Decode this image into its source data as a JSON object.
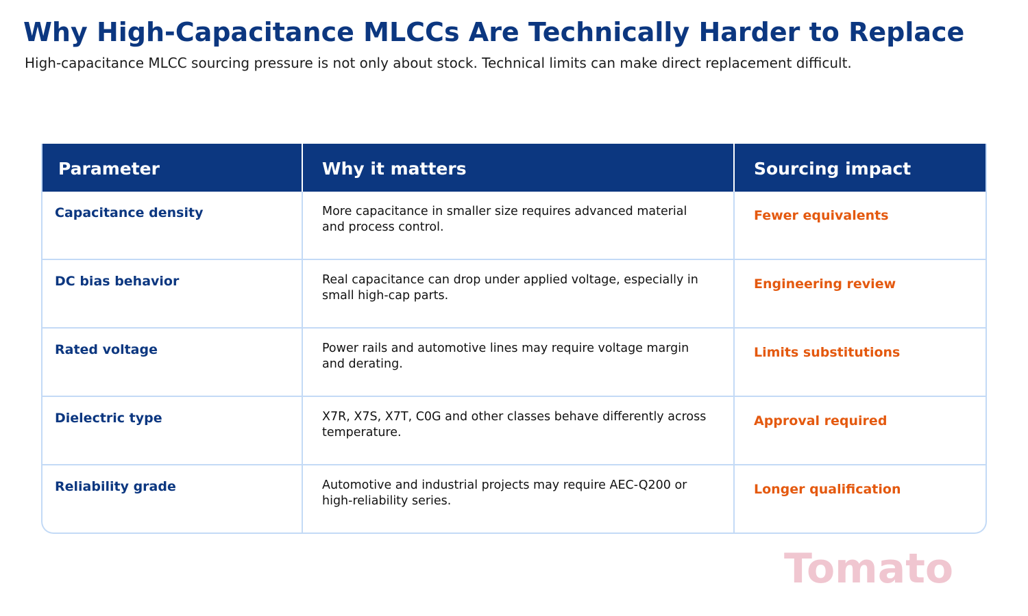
{
  "header": {
    "title": "Why High-Capacitance MLCCs Are Technically Harder to Replace",
    "subtitle": "High-capacitance MLCC sourcing pressure is not only about stock. Technical limits can make direct replacement difficult."
  },
  "table": {
    "columns": [
      "Parameter",
      "Why it matters",
      "Sourcing impact"
    ],
    "rows": [
      {
        "parameter": "Capacitance density",
        "why": "More capacitance in smaller size requires advanced material and process control.",
        "impact": "Fewer equivalents"
      },
      {
        "parameter": "DC bias behavior",
        "why": "Real capacitance can drop under applied voltage, especially in small high-cap parts.",
        "impact": "Engineering review"
      },
      {
        "parameter": "Rated voltage",
        "why": "Power rails and automotive lines may require voltage margin and derating.",
        "impact": "Limits substitutions"
      },
      {
        "parameter": "Dielectric type",
        "why": "X7R, X7S, X7T, C0G and other classes behave differently across temperature.",
        "impact": "Approval required"
      },
      {
        "parameter": "Reliability grade",
        "why": "Automotive and industrial projects may require AEC-Q200 or high-reliability series.",
        "impact": "Longer qualification"
      }
    ]
  },
  "watermark": {
    "text": "Tomato"
  },
  "colors": {
    "primary": "#0c3780",
    "accent": "#e4590f",
    "border": "#c3daf6",
    "watermark": "#f0c6d0"
  }
}
